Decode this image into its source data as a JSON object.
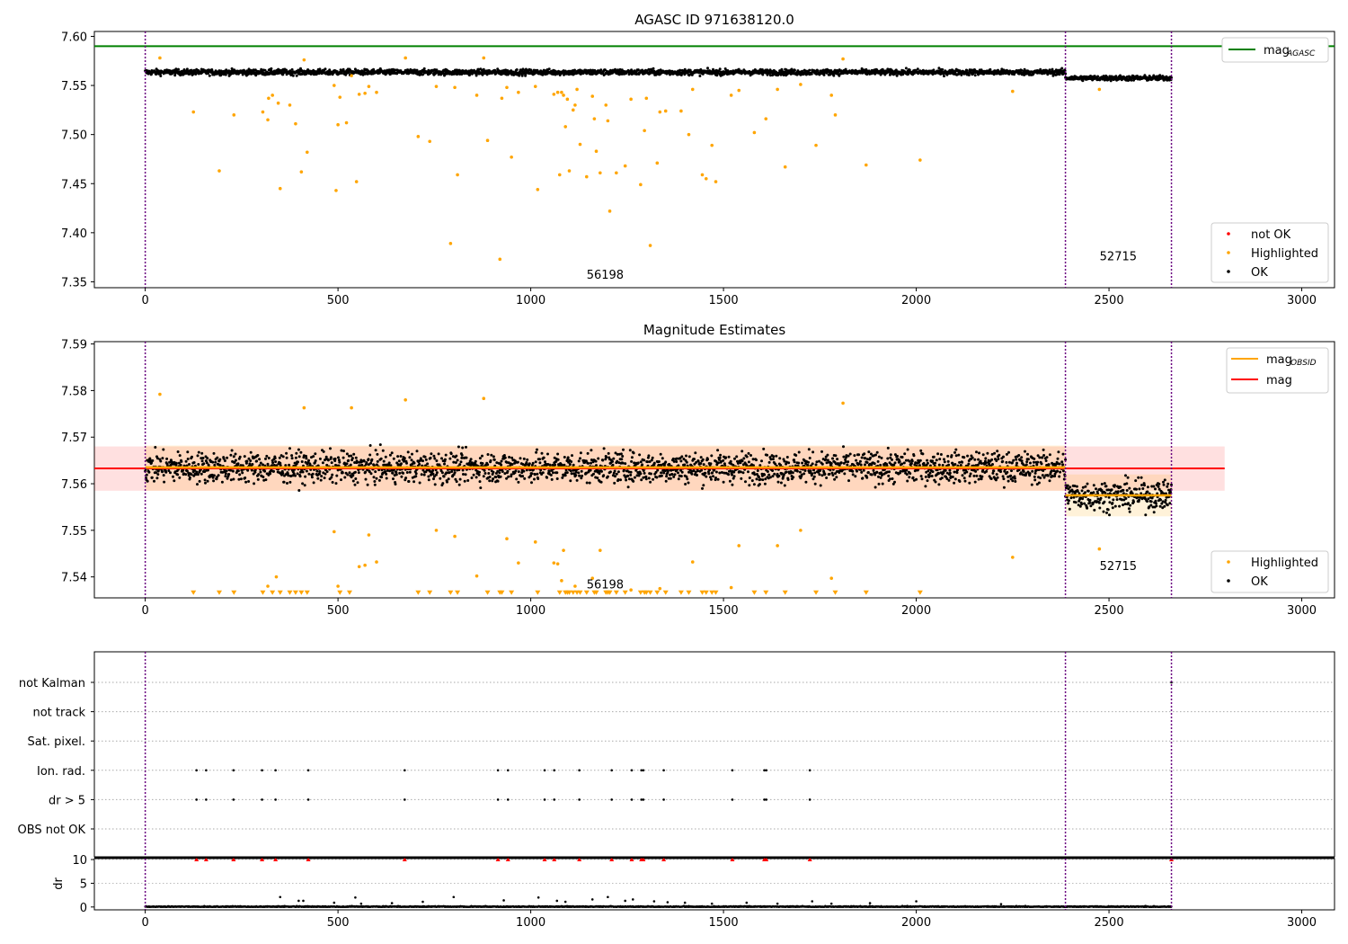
{
  "chart_data": [
    {
      "type": "scatter",
      "title": "AGASC ID 971638120.0",
      "xlim": [
        -132,
        3085
      ],
      "ylim": [
        7.344,
        7.605
      ],
      "xticks": [
        0,
        500,
        1000,
        1500,
        2000,
        2500,
        3000
      ],
      "yticks": [
        7.35,
        7.4,
        7.45,
        7.5,
        7.55,
        7.6
      ],
      "ytick_labels": [
        "7.35",
        "7.40",
        "7.45",
        "7.50",
        "7.55",
        "7.60"
      ],
      "obs_boundaries": [
        0,
        2387,
        2662
      ],
      "obs_labels": [
        {
          "text": "56198",
          "x": 1193,
          "y": 7.353
        },
        {
          "text": "52715",
          "x": 2524,
          "y": 7.372
        }
      ],
      "mag_agasc": 7.59,
      "legend_lines": [
        {
          "label": "mag",
          "sub": "AGASC",
          "color": "#008000"
        }
      ],
      "legend_points": [
        {
          "label": "not OK",
          "color": "#ff0000"
        },
        {
          "label": "Highlighted",
          "color": "#ffa500"
        },
        {
          "label": "OK",
          "color": "#000000"
        }
      ],
      "ok_band": [
        {
          "x0": 0,
          "x1": 2387,
          "center": 7.5635,
          "spread": 0.0037
        },
        {
          "x0": 2387,
          "x1": 2662,
          "center": 7.5575,
          "spread": 0.0033
        }
      ],
      "highlighted": [
        [
          38,
          7.578
        ],
        [
          125,
          7.523
        ],
        [
          192,
          7.463
        ],
        [
          230,
          7.52
        ],
        [
          305,
          7.523
        ],
        [
          318,
          7.515
        ],
        [
          320,
          7.537
        ],
        [
          330,
          7.54
        ],
        [
          345,
          7.532
        ],
        [
          350,
          7.445
        ],
        [
          375,
          7.53
        ],
        [
          390,
          7.511
        ],
        [
          405,
          7.462
        ],
        [
          412,
          7.576
        ],
        [
          420,
          7.482
        ],
        [
          490,
          7.55
        ],
        [
          495,
          7.443
        ],
        [
          500,
          7.51
        ],
        [
          505,
          7.538
        ],
        [
          522,
          7.512
        ],
        [
          535,
          7.56
        ],
        [
          548,
          7.452
        ],
        [
          555,
          7.541
        ],
        [
          570,
          7.542
        ],
        [
          580,
          7.549
        ],
        [
          600,
          7.543
        ],
        [
          675,
          7.578
        ],
        [
          708,
          7.498
        ],
        [
          738,
          7.493
        ],
        [
          755,
          7.549
        ],
        [
          792,
          7.389
        ],
        [
          803,
          7.548
        ],
        [
          810,
          7.459
        ],
        [
          860,
          7.54
        ],
        [
          878,
          7.578
        ],
        [
          888,
          7.494
        ],
        [
          920,
          7.373
        ],
        [
          925,
          7.537
        ],
        [
          938,
          7.548
        ],
        [
          950,
          7.477
        ],
        [
          968,
          7.543
        ],
        [
          1012,
          7.549
        ],
        [
          1018,
          7.444
        ],
        [
          1060,
          7.541
        ],
        [
          1070,
          7.543
        ],
        [
          1075,
          7.459
        ],
        [
          1080,
          7.543
        ],
        [
          1085,
          7.54
        ],
        [
          1090,
          7.508
        ],
        [
          1095,
          7.536
        ],
        [
          1100,
          7.463
        ],
        [
          1110,
          7.525
        ],
        [
          1115,
          7.53
        ],
        [
          1120,
          7.546
        ],
        [
          1128,
          7.49
        ],
        [
          1145,
          7.457
        ],
        [
          1160,
          7.539
        ],
        [
          1165,
          7.516
        ],
        [
          1170,
          7.483
        ],
        [
          1180,
          7.461
        ],
        [
          1195,
          7.53
        ],
        [
          1200,
          7.514
        ],
        [
          1205,
          7.422
        ],
        [
          1222,
          7.461
        ],
        [
          1245,
          7.468
        ],
        [
          1260,
          7.536
        ],
        [
          1285,
          7.449
        ],
        [
          1295,
          7.504
        ],
        [
          1300,
          7.537
        ],
        [
          1310,
          7.387
        ],
        [
          1328,
          7.471
        ],
        [
          1335,
          7.523
        ],
        [
          1350,
          7.524
        ],
        [
          1390,
          7.524
        ],
        [
          1410,
          7.5
        ],
        [
          1420,
          7.546
        ],
        [
          1445,
          7.459
        ],
        [
          1455,
          7.455
        ],
        [
          1470,
          7.489
        ],
        [
          1480,
          7.452
        ],
        [
          1520,
          7.54
        ],
        [
          1540,
          7.545
        ],
        [
          1580,
          7.502
        ],
        [
          1610,
          7.516
        ],
        [
          1640,
          7.546
        ],
        [
          1660,
          7.467
        ],
        [
          1700,
          7.551
        ],
        [
          1740,
          7.489
        ],
        [
          1780,
          7.54
        ],
        [
          1790,
          7.52
        ],
        [
          1810,
          7.577
        ],
        [
          1870,
          7.469
        ],
        [
          2010,
          7.474
        ],
        [
          2250,
          7.544
        ],
        [
          2475,
          7.546
        ]
      ]
    },
    {
      "type": "scatter",
      "title": "Magnitude Estimates",
      "xlim": [
        -132,
        3085
      ],
      "ylim": [
        7.5355,
        7.5905
      ],
      "xticks": [
        0,
        500,
        1000,
        1500,
        2000,
        2500,
        3000
      ],
      "yticks": [
        7.54,
        7.55,
        7.56,
        7.57,
        7.58,
        7.59
      ],
      "ytick_labels": [
        "7.54",
        "7.55",
        "7.56",
        "7.57",
        "7.58",
        "7.59"
      ],
      "obs_boundaries": [
        0,
        2387,
        2662
      ],
      "obs_labels": [
        {
          "text": "56198",
          "x": 1193,
          "y": 7.5375
        },
        {
          "text": "52715",
          "x": 2524,
          "y": 7.5415
        }
      ],
      "mag": 7.5633,
      "mag_band": [
        7.5585,
        7.568
      ],
      "mag_obsid": [
        {
          "x0": 0,
          "x1": 2387,
          "value": 7.5635,
          "band": [
            7.5585,
            7.5682
          ]
        },
        {
          "x0": 2387,
          "x1": 2662,
          "value": 7.5575,
          "band": [
            7.553,
            7.562
          ]
        }
      ],
      "legend_lines": [
        {
          "label": "mag",
          "sub": "OBSID",
          "color": "#ffa500"
        },
        {
          "label": "mag",
          "sub": "",
          "color": "#ff0000"
        }
      ],
      "legend_points": [
        {
          "label": "Highlighted",
          "color": "#ffa500"
        },
        {
          "label": "OK",
          "color": "#000000"
        }
      ],
      "ok_band": [
        {
          "x0": 0,
          "x1": 2387,
          "center": 7.5635,
          "spread": 0.0042
        },
        {
          "x0": 2387,
          "x1": 2662,
          "center": 7.5575,
          "spread": 0.004
        }
      ],
      "highlighted": [
        [
          38,
          7.5792
        ],
        [
          125,
          7.5367
        ],
        [
          192,
          7.5367
        ],
        [
          230,
          7.5367
        ],
        [
          305,
          7.5367
        ],
        [
          318,
          7.538
        ],
        [
          330,
          7.5367
        ],
        [
          340,
          7.54
        ],
        [
          350,
          7.5367
        ],
        [
          375,
          7.5367
        ],
        [
          390,
          7.5367
        ],
        [
          405,
          7.5367
        ],
        [
          412,
          7.5763
        ],
        [
          420,
          7.5367
        ],
        [
          490,
          7.5497
        ],
        [
          500,
          7.538
        ],
        [
          505,
          7.5367
        ],
        [
          530,
          7.5367
        ],
        [
          535,
          7.5763
        ],
        [
          555,
          7.5422
        ],
        [
          570,
          7.5425
        ],
        [
          580,
          7.549
        ],
        [
          600,
          7.5432
        ],
        [
          675,
          7.578
        ],
        [
          708,
          7.5367
        ],
        [
          738,
          7.5367
        ],
        [
          755,
          7.55
        ],
        [
          792,
          7.5367
        ],
        [
          803,
          7.5487
        ],
        [
          810,
          7.5367
        ],
        [
          860,
          7.5402
        ],
        [
          878,
          7.5783
        ],
        [
          888,
          7.5367
        ],
        [
          920,
          7.5367
        ],
        [
          925,
          7.5367
        ],
        [
          938,
          7.5482
        ],
        [
          950,
          7.5367
        ],
        [
          968,
          7.543
        ],
        [
          1012,
          7.5475
        ],
        [
          1018,
          7.5367
        ],
        [
          1060,
          7.543
        ],
        [
          1070,
          7.5428
        ],
        [
          1075,
          7.5367
        ],
        [
          1080,
          7.5392
        ],
        [
          1085,
          7.5457
        ],
        [
          1090,
          7.5367
        ],
        [
          1095,
          7.5367
        ],
        [
          1100,
          7.5367
        ],
        [
          1110,
          7.5367
        ],
        [
          1115,
          7.538
        ],
        [
          1120,
          7.5367
        ],
        [
          1128,
          7.5367
        ],
        [
          1145,
          7.5367
        ],
        [
          1160,
          7.5397
        ],
        [
          1165,
          7.5367
        ],
        [
          1170,
          7.5367
        ],
        [
          1180,
          7.5457
        ],
        [
          1195,
          7.5367
        ],
        [
          1200,
          7.5367
        ],
        [
          1205,
          7.5367
        ],
        [
          1222,
          7.5367
        ],
        [
          1245,
          7.5367
        ],
        [
          1260,
          7.5372
        ],
        [
          1285,
          7.5367
        ],
        [
          1295,
          7.5367
        ],
        [
          1300,
          7.5367
        ],
        [
          1310,
          7.5367
        ],
        [
          1328,
          7.5367
        ],
        [
          1335,
          7.5375
        ],
        [
          1350,
          7.5367
        ],
        [
          1390,
          7.5367
        ],
        [
          1410,
          7.5367
        ],
        [
          1420,
          7.5432
        ],
        [
          1445,
          7.5367
        ],
        [
          1455,
          7.5367
        ],
        [
          1470,
          7.5367
        ],
        [
          1480,
          7.5367
        ],
        [
          1520,
          7.5377
        ],
        [
          1540,
          7.5467
        ],
        [
          1580,
          7.5367
        ],
        [
          1610,
          7.5367
        ],
        [
          1640,
          7.5467
        ],
        [
          1660,
          7.5367
        ],
        [
          1700,
          7.55
        ],
        [
          1740,
          7.5367
        ],
        [
          1780,
          7.5397
        ],
        [
          1790,
          7.5367
        ],
        [
          1810,
          7.5773
        ],
        [
          1870,
          7.5367
        ],
        [
          2010,
          7.5367
        ],
        [
          2250,
          7.5442
        ],
        [
          2475,
          7.546
        ]
      ]
    },
    {
      "type": "scatter",
      "xlim": [
        -132,
        3085
      ],
      "xticks": [
        0,
        500,
        1000,
        1500,
        2000,
        2500,
        3000
      ],
      "obs_boundaries": [
        0,
        2387,
        2662
      ],
      "flag_rows": [
        "not Kalman",
        "not track",
        "Sat. pixel.",
        "Ion. rad.",
        "dr > 5",
        "OBS not OK"
      ],
      "flag_events": [
        {
          "row": "Ion. rad.",
          "x": [
            133,
            158,
            229,
            303,
            338,
            423,
            673,
            915,
            941,
            1036,
            1061,
            1126,
            1210,
            1262,
            1287,
            1292,
            1345,
            1523,
            1606,
            1611,
            1724
          ]
        },
        {
          "row": "dr > 5",
          "x": [
            133,
            158,
            229,
            303,
            338,
            423,
            673,
            915,
            941,
            1036,
            1061,
            1126,
            1210,
            1262,
            1287,
            1292,
            1345,
            1523,
            1606,
            1611,
            1724
          ]
        },
        {
          "row": "not Kalman",
          "x": [
            2662
          ]
        }
      ],
      "dr_ylabel": "dr",
      "dr_ylim": [
        -0.6,
        10.2
      ],
      "dr_yticks": [
        0,
        5,
        10
      ],
      "dr_clipped_x": [
        133,
        158,
        229,
        303,
        338,
        423,
        673,
        915,
        941,
        1036,
        1061,
        1126,
        1210,
        1262,
        1287,
        1292,
        1345,
        1523,
        1606,
        1611,
        1724,
        2662
      ],
      "dr_spikes": [
        [
          350,
          2.1
        ],
        [
          398,
          1.3
        ],
        [
          410,
          1.3
        ],
        [
          490,
          0.9
        ],
        [
          545,
          2.0
        ],
        [
          560,
          0.7
        ],
        [
          640,
          0.8
        ],
        [
          720,
          1.1
        ],
        [
          800,
          2.1
        ],
        [
          930,
          1.4
        ],
        [
          1020,
          2.0
        ],
        [
          1068,
          1.3
        ],
        [
          1090,
          1.1
        ],
        [
          1160,
          1.6
        ],
        [
          1200,
          2.1
        ],
        [
          1245,
          1.3
        ],
        [
          1265,
          1.6
        ],
        [
          1320,
          1.2
        ],
        [
          1355,
          1.0
        ],
        [
          1400,
          0.9
        ],
        [
          1470,
          0.7
        ],
        [
          1560,
          0.9
        ],
        [
          1640,
          0.7
        ],
        [
          1730,
          1.2
        ],
        [
          1780,
          0.7
        ],
        [
          1880,
          0.8
        ],
        [
          2000,
          1.2
        ],
        [
          2220,
          0.6
        ]
      ]
    }
  ]
}
